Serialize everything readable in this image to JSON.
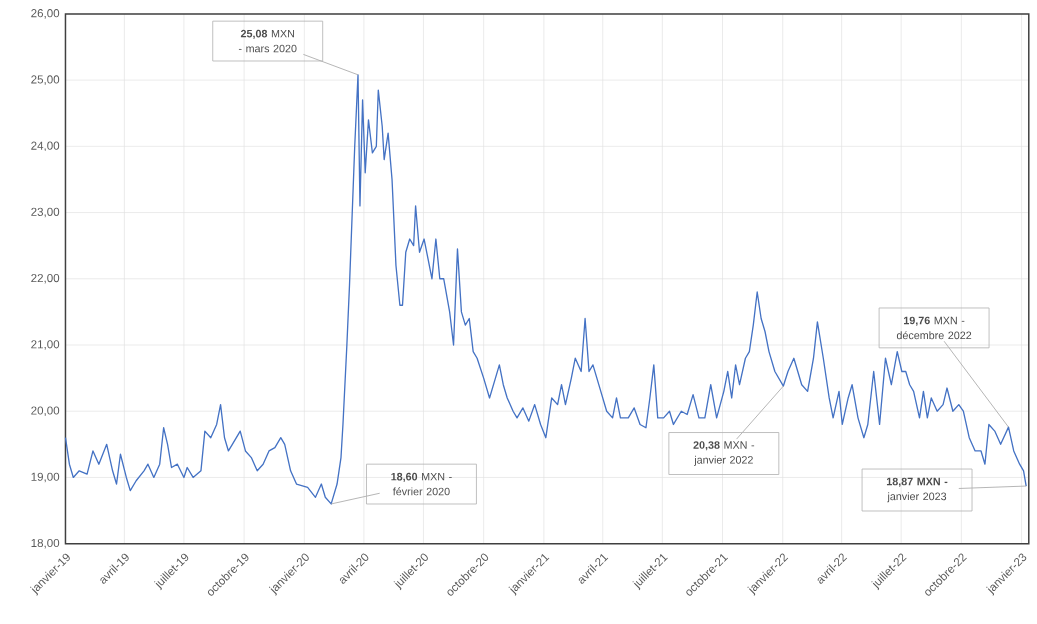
{
  "chart_data": {
    "type": "line",
    "x": [
      "2019-01-01",
      "2019-01-07",
      "2019-01-13",
      "2019-01-22",
      "2019-02-03",
      "2019-02-12",
      "2019-02-21",
      "2019-03-05",
      "2019-03-14",
      "2019-03-20",
      "2019-03-26",
      "2019-04-04",
      "2019-04-10",
      "2019-04-19",
      "2019-05-01",
      "2019-05-07",
      "2019-05-16",
      "2019-05-25",
      "2019-05-31",
      "2019-06-06",
      "2019-06-12",
      "2019-06-21",
      "2019-07-01",
      "2019-07-06",
      "2019-07-15",
      "2019-07-27",
      "2019-08-02",
      "2019-08-11",
      "2019-08-20",
      "2019-08-26",
      "2019-09-01",
      "2019-09-07",
      "2019-09-13",
      "2019-09-25",
      "2019-10-03",
      "2019-10-12",
      "2019-10-21",
      "2019-10-30",
      "2019-11-08",
      "2019-11-17",
      "2019-11-26",
      "2019-12-02",
      "2019-12-11",
      "2019-12-20",
      "2020-01-06",
      "2020-01-18",
      "2020-01-27",
      "2020-02-02",
      "2020-02-11",
      "2020-02-20",
      "2020-02-26",
      "2020-02-29",
      "2020-03-06",
      "2020-03-10",
      "2020-03-18",
      "2020-03-23",
      "2020-03-26",
      "2020-03-30",
      "2020-04-03",
      "2020-04-08",
      "2020-04-14",
      "2020-04-20",
      "2020-04-23",
      "2020-04-29",
      "2020-05-02",
      "2020-05-08",
      "2020-05-14",
      "2020-05-20",
      "2020-05-26",
      "2020-05-30",
      "2020-06-04",
      "2020-06-10",
      "2020-06-16",
      "2020-06-19",
      "2020-06-25",
      "2020-07-02",
      "2020-07-08",
      "2020-07-14",
      "2020-07-20",
      "2020-07-26",
      "2020-08-01",
      "2020-08-10",
      "2020-08-16",
      "2020-08-22",
      "2020-08-28",
      "2020-09-03",
      "2020-09-09",
      "2020-09-15",
      "2020-09-21",
      "2020-10-01",
      "2020-10-10",
      "2020-10-19",
      "2020-10-25",
      "2020-10-31",
      "2020-11-06",
      "2020-11-15",
      "2020-11-21",
      "2020-11-30",
      "2020-12-09",
      "2020-12-18",
      "2020-12-27",
      "2021-01-04",
      "2021-01-13",
      "2021-01-22",
      "2021-01-28",
      "2021-02-03",
      "2021-02-12",
      "2021-02-18",
      "2021-02-27",
      "2021-03-05",
      "2021-03-11",
      "2021-03-17",
      "2021-03-23",
      "2021-03-29",
      "2021-04-07",
      "2021-04-16",
      "2021-04-22",
      "2021-04-28",
      "2021-05-10",
      "2021-05-19",
      "2021-05-28",
      "2021-06-06",
      "2021-06-12",
      "2021-06-18",
      "2021-06-24",
      "2021-07-03",
      "2021-07-12",
      "2021-07-18",
      "2021-07-30",
      "2021-08-08",
      "2021-08-17",
      "2021-08-26",
      "2021-09-04",
      "2021-09-13",
      "2021-09-22",
      "2021-10-03",
      "2021-10-09",
      "2021-10-15",
      "2021-10-21",
      "2021-10-27",
      "2021-11-05",
      "2021-11-11",
      "2021-11-17",
      "2021-11-23",
      "2021-11-29",
      "2021-12-05",
      "2021-12-11",
      "2021-12-20",
      "2022-01-02",
      "2022-01-09",
      "2022-01-18",
      "2022-01-24",
      "2022-01-30",
      "2022-02-08",
      "2022-02-17",
      "2022-02-23",
      "2022-03-04",
      "2022-03-13",
      "2022-03-19",
      "2022-03-28",
      "2022-04-02",
      "2022-04-11",
      "2022-04-17",
      "2022-04-26",
      "2022-05-05",
      "2022-05-11",
      "2022-05-20",
      "2022-05-29",
      "2022-06-07",
      "2022-06-16",
      "2022-06-25",
      "2022-07-02",
      "2022-07-08",
      "2022-07-14",
      "2022-07-20",
      "2022-07-29",
      "2022-08-04",
      "2022-08-10",
      "2022-08-16",
      "2022-08-25",
      "2022-09-03",
      "2022-09-09",
      "2022-09-18",
      "2022-09-27",
      "2022-10-04",
      "2022-10-13",
      "2022-10-22",
      "2022-10-31",
      "2022-11-06",
      "2022-11-12",
      "2022-11-21",
      "2022-11-30",
      "2022-12-12",
      "2022-12-20",
      "2022-12-29",
      "2023-01-04",
      "2023-01-08"
    ],
    "series": [
      {
        "color": "#4472c4",
        "values": [
          19.6,
          19.2,
          19.0,
          19.1,
          19.05,
          19.4,
          19.2,
          19.5,
          19.1,
          18.9,
          19.35,
          19.0,
          18.8,
          18.95,
          19.1,
          19.2,
          19.0,
          19.2,
          19.75,
          19.5,
          19.15,
          19.2,
          19.0,
          19.15,
          19.0,
          19.1,
          19.7,
          19.6,
          19.8,
          20.1,
          19.6,
          19.4,
          19.5,
          19.7,
          19.4,
          19.3,
          19.1,
          19.2,
          19.4,
          19.45,
          19.6,
          19.5,
          19.1,
          18.9,
          18.85,
          18.7,
          18.9,
          18.7,
          18.6,
          18.9,
          19.3,
          19.8,
          21.0,
          21.9,
          24.0,
          25.08,
          23.1,
          24.7,
          23.6,
          24.4,
          23.9,
          24.0,
          24.85,
          24.3,
          23.8,
          24.2,
          23.5,
          22.2,
          21.6,
          21.6,
          22.4,
          22.6,
          22.5,
          23.1,
          22.4,
          22.6,
          22.3,
          22.0,
          22.6,
          22.0,
          22.0,
          21.5,
          21.0,
          22.45,
          21.5,
          21.3,
          21.4,
          20.9,
          20.8,
          20.5,
          20.2,
          20.5,
          20.7,
          20.4,
          20.2,
          20.0,
          19.9,
          20.05,
          19.85,
          20.1,
          19.8,
          19.6,
          20.2,
          20.1,
          20.4,
          20.1,
          20.5,
          20.8,
          20.6,
          21.4,
          20.6,
          20.7,
          20.5,
          20.3,
          20.0,
          19.9,
          20.2,
          19.9,
          19.9,
          20.05,
          19.8,
          19.75,
          20.2,
          20.7,
          19.9,
          19.9,
          20.0,
          19.8,
          20.0,
          19.95,
          20.25,
          19.9,
          19.9,
          20.4,
          19.9,
          20.3,
          20.6,
          20.2,
          20.7,
          20.4,
          20.8,
          20.9,
          21.3,
          21.8,
          21.4,
          21.2,
          20.9,
          20.6,
          20.38,
          20.6,
          20.8,
          20.6,
          20.4,
          20.3,
          20.8,
          21.35,
          20.8,
          20.2,
          19.9,
          20.3,
          19.8,
          20.2,
          20.4,
          19.9,
          19.6,
          19.8,
          20.6,
          19.8,
          20.8,
          20.4,
          20.9,
          20.6,
          20.6,
          20.4,
          20.3,
          19.9,
          20.3,
          19.9,
          20.2,
          20.0,
          20.1,
          20.35,
          20.0,
          20.1,
          20.0,
          19.6,
          19.4,
          19.4,
          19.2,
          19.8,
          19.7,
          19.5,
          19.76,
          19.4,
          19.2,
          19.1,
          18.87
        ]
      }
    ],
    "xlim": [
      "2019-01-01",
      "2023-01-12"
    ],
    "xticks": [
      {
        "value": "2019-01-01",
        "label": "janvier-19"
      },
      {
        "value": "2019-04-01",
        "label": "avril-19"
      },
      {
        "value": "2019-07-01",
        "label": "juillet-19"
      },
      {
        "value": "2019-10-01",
        "label": "octobre-19"
      },
      {
        "value": "2020-01-01",
        "label": "janvier-20"
      },
      {
        "value": "2020-04-01",
        "label": "avril-20"
      },
      {
        "value": "2020-07-01",
        "label": "juillet-20"
      },
      {
        "value": "2020-10-01",
        "label": "octobre-20"
      },
      {
        "value": "2021-01-01",
        "label": "janvier-21"
      },
      {
        "value": "2021-04-01",
        "label": "avril-21"
      },
      {
        "value": "2021-07-01",
        "label": "juillet-21"
      },
      {
        "value": "2021-10-01",
        "label": "octobre-21"
      },
      {
        "value": "2022-01-01",
        "label": "janvier-22"
      },
      {
        "value": "2022-04-01",
        "label": "avril-22"
      },
      {
        "value": "2022-07-01",
        "label": "juillet-22"
      },
      {
        "value": "2022-10-01",
        "label": "octobre-22"
      },
      {
        "value": "2023-01-01",
        "label": "janvier-23"
      }
    ],
    "ylim": [
      18,
      26
    ],
    "yticks": [
      {
        "value": 18,
        "label": "18,00"
      },
      {
        "value": 19,
        "label": "19,00"
      },
      {
        "value": 20,
        "label": "20,00"
      },
      {
        "value": 21,
        "label": "21,00"
      },
      {
        "value": 22,
        "label": "22,00"
      },
      {
        "value": 23,
        "label": "23,00"
      },
      {
        "value": 24,
        "label": "24,00"
      },
      {
        "value": 25,
        "label": "25,00"
      },
      {
        "value": 26,
        "label": "26,00"
      }
    ],
    "grid": true,
    "annotations": [
      {
        "text": "**25,08** MXN - mars 2020",
        "x": "2020-03-23",
        "y": 25.08
      },
      {
        "text": "**18,60** MXN - février 2020",
        "x": "2020-02-11",
        "y": 18.6
      },
      {
        "text": "**20,38** MXN - janvier 2022",
        "x": "2022-01-02",
        "y": 20.38
      },
      {
        "text": "**19,76** MXN - décembre 2022",
        "x": "2022-12-12",
        "y": 19.76
      },
      {
        "text": "**18,87 MXN -** janvier 2023",
        "x": "2023-01-08",
        "y": 18.87
      }
    ]
  }
}
